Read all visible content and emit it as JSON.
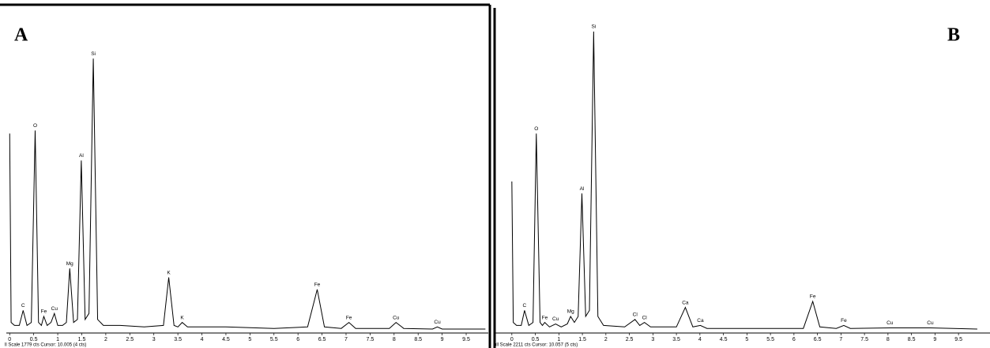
{
  "chart_data": [
    {
      "type": "line",
      "panel_label": "A",
      "footer": "ll Scale 1779 cts Cursor: 10.005 (4 cts)",
      "color": "#000000",
      "x": [
        0,
        0.03,
        0.1,
        0.2,
        0.28,
        0.36,
        0.45,
        0.53,
        0.6,
        0.66,
        0.71,
        0.78,
        0.86,
        0.93,
        1.0,
        1.1,
        1.18,
        1.25,
        1.33,
        1.41,
        1.49,
        1.57,
        1.65,
        1.74,
        1.83,
        1.95,
        2.3,
        2.8,
        3.2,
        3.31,
        3.42,
        3.5,
        3.59,
        3.7,
        4.5,
        5.5,
        6.2,
        6.4,
        6.55,
        6.9,
        7.06,
        7.2,
        7.9,
        8.04,
        8.2,
        8.8,
        8.9,
        9.0,
        9.9
      ],
      "values": [
        66,
        3,
        2,
        2,
        7,
        2,
        3,
        67,
        3,
        2,
        5,
        2,
        3,
        6,
        2,
        2,
        3,
        21,
        3,
        4,
        57,
        4,
        6,
        91,
        4,
        2,
        2,
        1.5,
        2,
        18,
        2,
        1.5,
        3,
        1.5,
        1.5,
        1,
        1.5,
        14,
        1.5,
        1,
        3,
        1,
        1,
        3,
        1,
        0.8,
        1.5,
        0.8,
        0.8
      ],
      "xlim": [
        -0.07,
        9.96
      ],
      "ylim": [
        0,
        100
      ],
      "xticks": [
        0,
        0.5,
        1,
        1.5,
        2,
        2.5,
        3,
        3.5,
        4,
        4.5,
        5,
        5.5,
        6,
        6.5,
        7,
        7.5,
        8,
        8.5,
        9,
        9.5
      ],
      "peak_labels": [
        {
          "label": "C",
          "x": 0.28
        },
        {
          "label": "O",
          "x": 0.53
        },
        {
          "label": "Fe",
          "x": 0.71
        },
        {
          "label": "Cu",
          "x": 0.93
        },
        {
          "label": "Mg",
          "x": 1.25
        },
        {
          "label": "Al",
          "x": 1.49
        },
        {
          "label": "Si",
          "x": 1.74
        },
        {
          "label": "K",
          "x": 3.31
        },
        {
          "label": "K",
          "x": 3.59
        },
        {
          "label": "Fe",
          "x": 6.4
        },
        {
          "label": "Fe",
          "x": 7.06
        },
        {
          "label": "Cu",
          "x": 8.04
        },
        {
          "label": "Cu",
          "x": 8.9
        }
      ]
    },
    {
      "type": "line",
      "panel_label": "B",
      "footer": "ull Scale 2211 cts Cursor: 10.057 (5 cts)",
      "color": "#000000",
      "x": [
        0,
        0.03,
        0.1,
        0.2,
        0.27,
        0.36,
        0.45,
        0.52,
        0.6,
        0.65,
        0.7,
        0.8,
        0.93,
        1.05,
        1.18,
        1.25,
        1.33,
        1.41,
        1.49,
        1.57,
        1.65,
        1.74,
        1.83,
        1.95,
        2.4,
        2.62,
        2.72,
        2.82,
        2.95,
        3.5,
        3.69,
        3.85,
        4.01,
        4.15,
        5,
        6.2,
        6.4,
        6.55,
        6.9,
        7.06,
        7.2,
        8.04,
        8.9,
        9.9
      ],
      "values": [
        50,
        3,
        2,
        2,
        7,
        2,
        3,
        66,
        3,
        2,
        3,
        1.5,
        2.5,
        1.5,
        2.5,
        5,
        3,
        5,
        46,
        5,
        7,
        100,
        5,
        2,
        1.5,
        4,
        2,
        3,
        1.5,
        1.5,
        8,
        1.5,
        2,
        1,
        1,
        1,
        10,
        1.5,
        1,
        2,
        1,
        1.2,
        1.2,
        0.8
      ],
      "xlim": [
        -0.35,
        10.17
      ],
      "ylim": [
        0,
        100
      ],
      "xticks": [
        0,
        0.5,
        1,
        1.5,
        2,
        2.5,
        3,
        3.5,
        4,
        4.5,
        5,
        5.5,
        6,
        6.5,
        7,
        7.5,
        8,
        8.5,
        9,
        9.5
      ],
      "peak_labels": [
        {
          "label": "C",
          "x": 0.27
        },
        {
          "label": "O",
          "x": 0.52
        },
        {
          "label": "Fe",
          "x": 0.7
        },
        {
          "label": "Cu",
          "x": 0.93
        },
        {
          "label": "Mg",
          "x": 1.25
        },
        {
          "label": "Al",
          "x": 1.49
        },
        {
          "label": "Si",
          "x": 1.74
        },
        {
          "label": "Cl",
          "x": 2.62
        },
        {
          "label": "Cl",
          "x": 2.82
        },
        {
          "label": "Ca",
          "x": 3.69
        },
        {
          "label": "Ca",
          "x": 4.01
        },
        {
          "label": "Fe",
          "x": 6.4
        },
        {
          "label": "Fe",
          "x": 7.06
        },
        {
          "label": "Cu",
          "x": 8.04
        },
        {
          "label": "Cu",
          "x": 8.9
        }
      ]
    }
  ]
}
